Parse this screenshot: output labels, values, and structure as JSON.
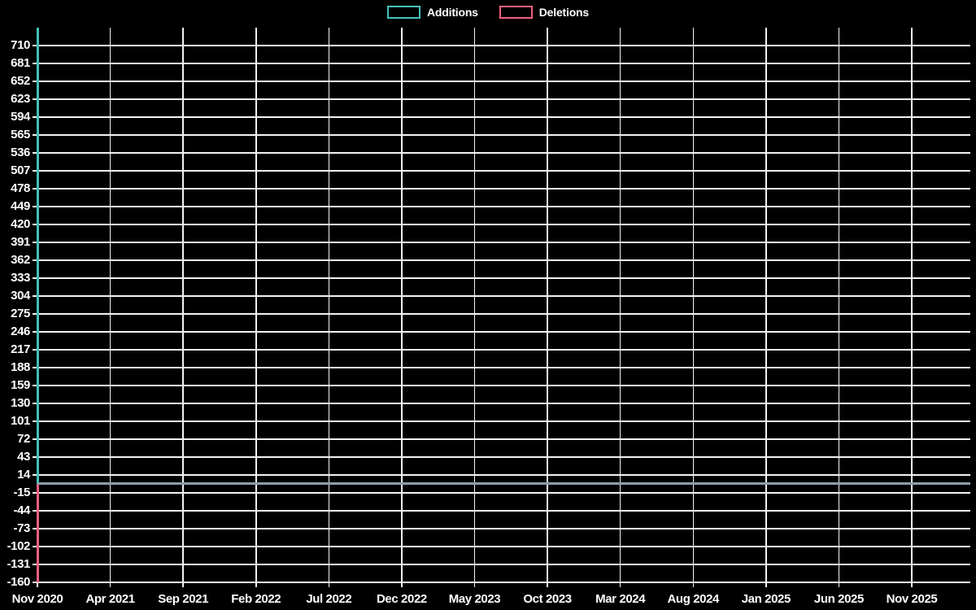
{
  "page": {
    "background": "#000000",
    "text_color": "#ffffff"
  },
  "legend": {
    "position": "top-center",
    "items": [
      {
        "label": "Additions",
        "color": "#44c0b9"
      },
      {
        "label": "Deletions",
        "color": "#f2607f"
      }
    ]
  },
  "chart_data": {
    "type": "line",
    "title": "",
    "xlabel": "",
    "ylabel": "",
    "background": "#000000",
    "grid": true,
    "grid_color": "#f2f2f2",
    "zero_line_color": "#8b9faa",
    "text_color": "#ffffff",
    "ylim": [
      -160,
      739
    ],
    "y_tick_step": 29,
    "y_ticks": [
      710,
      681,
      652,
      623,
      594,
      565,
      536,
      507,
      478,
      449,
      420,
      391,
      362,
      333,
      304,
      275,
      246,
      217,
      188,
      159,
      130,
      101,
      72,
      43,
      14,
      -15,
      -44,
      -73,
      -102,
      -131,
      -160
    ],
    "x_tick_labels": [
      "Nov 2020",
      "Apr 2021",
      "Sep 2021",
      "Feb 2022",
      "Jul 2022",
      "Dec 2022",
      "May 2023",
      "Oct 2023",
      "Mar 2024",
      "Aug 2024",
      "Jan 2025",
      "Jun 2025",
      "Nov 2025"
    ],
    "series": [
      {
        "name": "Additions",
        "color": "#44c0b9",
        "peak_value": 739,
        "peak_at": "Nov 2020",
        "steady_value": 0,
        "values_by_tick": [
          739,
          0,
          0,
          0,
          0,
          0,
          0,
          0,
          0,
          0,
          0,
          0,
          0
        ]
      },
      {
        "name": "Deletions",
        "color": "#f2607f",
        "peak_value": -160,
        "peak_at": "Nov 2020",
        "steady_value": 0,
        "values_by_tick": [
          -160,
          0,
          0,
          0,
          0,
          0,
          0,
          0,
          0,
          0,
          0,
          0,
          0
        ]
      }
    ]
  }
}
